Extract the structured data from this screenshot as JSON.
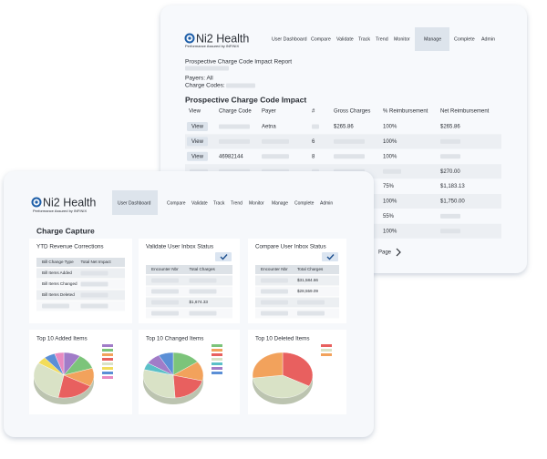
{
  "back_window": {
    "logo": {
      "name": "Ni2 Health",
      "tagline": "Performance Assured by INFINIX"
    },
    "nav": [
      "User Dashboard",
      "Compare",
      "Validate",
      "Track",
      "Trend",
      "Monitor",
      "Manage",
      "Complete",
      "Admin"
    ],
    "report_title": "Prospective Charge Code Impact Report",
    "payers": "Payers: All",
    "charge_codes": "Charge Codes:",
    "section_title": "Prospective Charge Code Impact",
    "table": {
      "columns": [
        "View",
        "Charge Code",
        "Payer",
        "#",
        "Gross Charges",
        "% Reimbursement",
        "Net Reimbursement"
      ],
      "rows": [
        [
          "View",
          null,
          "Aetna",
          null,
          "$265.86",
          "100%",
          "$265.86"
        ],
        [
          "View",
          null,
          null,
          "6",
          null,
          "100%",
          null
        ],
        [
          "View",
          "46982144",
          null,
          "8",
          null,
          "100%",
          null
        ],
        [
          null,
          null,
          null,
          null,
          null,
          null,
          "$270.00"
        ],
        [
          null,
          null,
          null,
          null,
          null,
          "75%",
          "$1,183.13"
        ],
        [
          null,
          null,
          null,
          null,
          null,
          "100%",
          "$1,750.00"
        ],
        [
          null,
          null,
          null,
          null,
          null,
          "55%",
          null
        ],
        [
          null,
          null,
          null,
          null,
          null,
          "100%",
          null
        ]
      ]
    },
    "pagination": "Page"
  },
  "front_window": {
    "logo": {
      "name": "Ni2 Health",
      "tagline": "Performance Assured by INFINIX"
    },
    "nav": [
      "User Dashboard",
      "Compare",
      "Validate",
      "Track",
      "Trend",
      "Monitor",
      "Manage",
      "Complete",
      "Admin"
    ],
    "page_title": "Charge Capture",
    "panels": [
      {
        "title": "YTD Revenue Corrections",
        "columns": [
          "Bill Change Type",
          "Total Net Impact"
        ],
        "rows": [
          [
            "Bill Items Added",
            null
          ],
          [
            "Bill Items Changed",
            null
          ],
          [
            "Bill Items Deleted",
            null
          ],
          [
            null,
            null
          ]
        ]
      },
      {
        "title": "Validate User Inbox Status",
        "columns": [
          "Encounter Nbr",
          "Total Charges"
        ],
        "rows": [
          [
            null,
            null
          ],
          [
            null,
            null
          ],
          [
            null,
            "$1,674.33"
          ],
          [
            null,
            null
          ]
        ]
      },
      {
        "title": "Compare User Inbox Status",
        "columns": [
          "Encounter Nbr",
          "Total Charges"
        ],
        "rows": [
          [
            null,
            "$31,584.66"
          ],
          [
            null,
            "$28,559.09"
          ],
          [
            null,
            null
          ],
          [
            null,
            null
          ]
        ]
      }
    ],
    "charts": [
      {
        "title": "Top 10 Added Items"
      },
      {
        "title": "Top 10 Changed Items"
      },
      {
        "title": "Top 10 Deleted Items"
      }
    ]
  }
}
